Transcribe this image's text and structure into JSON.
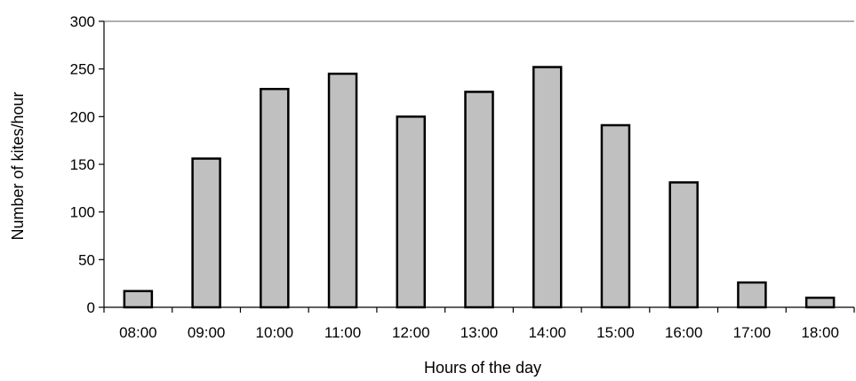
{
  "chart_data": {
    "type": "bar",
    "title": "",
    "xlabel": "Hours of the day",
    "ylabel": "Number of kites/hour",
    "categories": [
      "08:00",
      "09:00",
      "10:00",
      "11:00",
      "12:00",
      "13:00",
      "14:00",
      "15:00",
      "16:00",
      "17:00",
      "18:00"
    ],
    "values": [
      17,
      156,
      229,
      245,
      200,
      226,
      252,
      191,
      131,
      26,
      10
    ],
    "ylim": [
      0,
      300
    ],
    "yticks": [
      0,
      50,
      100,
      150,
      200,
      250,
      300
    ],
    "grid": false,
    "legend": "none",
    "bar_color": "#c0c0c0",
    "bar_edge_color": "#000000"
  }
}
